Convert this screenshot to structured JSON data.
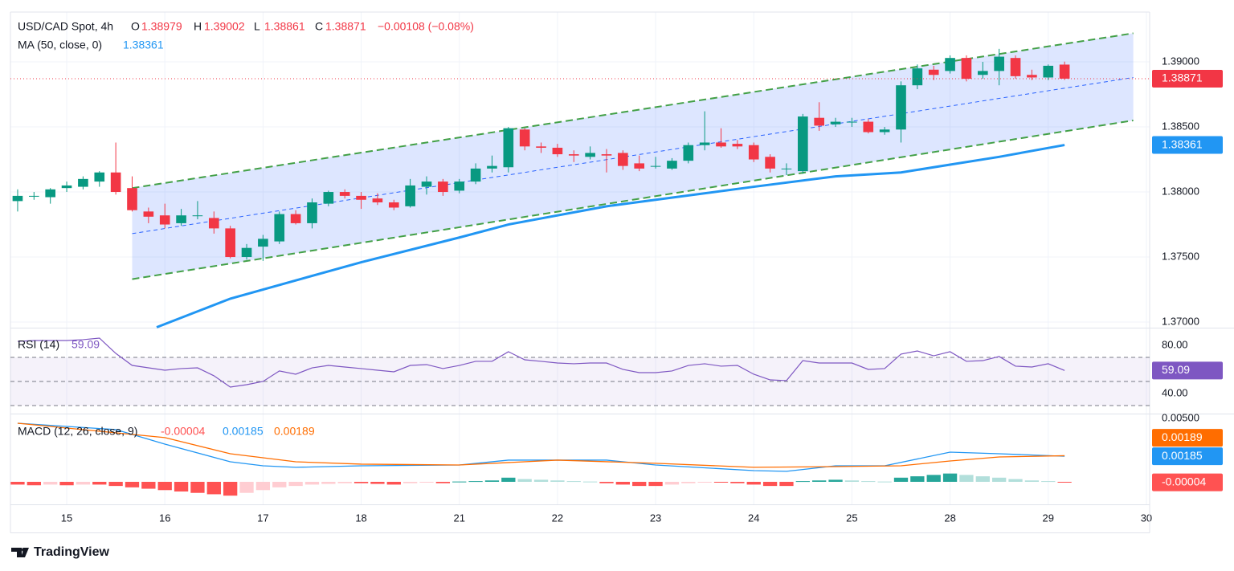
{
  "chart_data": [
    {
      "type": "candlestick",
      "title": "USD/CAD Spot, 4h",
      "ohlc_labels": [
        "O",
        "H",
        "L",
        "C"
      ],
      "change": "−0.00108 (−0.08%)",
      "ohlc": [
        [
          1.3793,
          1.3802,
          1.3785,
          1.3797
        ],
        [
          1.3797,
          1.38,
          1.3794,
          1.3797
        ],
        [
          1.3796,
          1.3803,
          1.3791,
          1.3802
        ],
        [
          1.3803,
          1.3808,
          1.38,
          1.3805
        ],
        [
          1.3804,
          1.3812,
          1.3802,
          1.381
        ],
        [
          1.3808,
          1.3816,
          1.3804,
          1.3815
        ],
        [
          1.3815,
          1.3838,
          1.3798,
          1.38
        ],
        [
          1.3803,
          1.3812,
          1.3785,
          1.3786
        ],
        [
          1.3785,
          1.3788,
          1.3776,
          1.3781
        ],
        [
          1.3782,
          1.3791,
          1.3772,
          1.3775
        ],
        [
          1.3776,
          1.3787,
          1.3774,
          1.3782
        ],
        [
          1.3782,
          1.3793,
          1.3779,
          1.3782
        ],
        [
          1.378,
          1.3785,
          1.3768,
          1.3772
        ],
        [
          1.3772,
          1.3774,
          1.3749,
          1.375
        ],
        [
          1.375,
          1.376,
          1.3748,
          1.3757
        ],
        [
          1.3758,
          1.3767,
          1.3747,
          1.3764
        ],
        [
          1.3762,
          1.3785,
          1.376,
          1.3783
        ],
        [
          1.3783,
          1.3786,
          1.3775,
          1.3776
        ],
        [
          1.3776,
          1.3795,
          1.3772,
          1.3792
        ],
        [
          1.3791,
          1.3801,
          1.3789,
          1.38
        ],
        [
          1.38,
          1.3802,
          1.3795,
          1.3797
        ],
        [
          1.3797,
          1.38,
          1.3787,
          1.3794
        ],
        [
          1.3795,
          1.3799,
          1.379,
          1.3792
        ],
        [
          1.3792,
          1.3794,
          1.3786,
          1.3788
        ],
        [
          1.3789,
          1.381,
          1.3788,
          1.3805
        ],
        [
          1.3804,
          1.3812,
          1.3798,
          1.3808
        ],
        [
          1.3808,
          1.381,
          1.3797,
          1.38
        ],
        [
          1.3801,
          1.381,
          1.3799,
          1.3808
        ],
        [
          1.3808,
          1.3822,
          1.3806,
          1.3818
        ],
        [
          1.3818,
          1.3828,
          1.3815,
          1.382
        ],
        [
          1.3819,
          1.385,
          1.3815,
          1.3849
        ],
        [
          1.3848,
          1.3849,
          1.3832,
          1.3835
        ],
        [
          1.3835,
          1.3838,
          1.383,
          1.3834
        ],
        [
          1.3834,
          1.3837,
          1.3827,
          1.3829
        ],
        [
          1.3829,
          1.3832,
          1.3823,
          1.3828
        ],
        [
          1.3827,
          1.3835,
          1.3825,
          1.383
        ],
        [
          1.3829,
          1.3833,
          1.3815,
          1.3828
        ],
        [
          1.383,
          1.3832,
          1.3817,
          1.382
        ],
        [
          1.3822,
          1.3828,
          1.3816,
          1.3818
        ],
        [
          1.382,
          1.3827,
          1.3818,
          1.382
        ],
        [
          1.3818,
          1.3826,
          1.3817,
          1.3824
        ],
        [
          1.3824,
          1.3838,
          1.3822,
          1.3836
        ],
        [
          1.3836,
          1.3862,
          1.3832,
          1.3838
        ],
        [
          1.3838,
          1.3849,
          1.3834,
          1.3835
        ],
        [
          1.3837,
          1.384,
          1.3833,
          1.3835
        ],
        [
          1.3836,
          1.3838,
          1.3823,
          1.3825
        ],
        [
          1.3827,
          1.3829,
          1.3815,
          1.3818
        ],
        [
          1.3818,
          1.3822,
          1.3813,
          1.3818
        ],
        [
          1.3816,
          1.386,
          1.3814,
          1.3858
        ],
        [
          1.3857,
          1.3869,
          1.3847,
          1.3851
        ],
        [
          1.3852,
          1.3857,
          1.385,
          1.3854
        ],
        [
          1.3854,
          1.3857,
          1.385,
          1.3854
        ],
        [
          1.3854,
          1.3856,
          1.3845,
          1.3846
        ],
        [
          1.3846,
          1.385,
          1.3844,
          1.3848
        ],
        [
          1.3848,
          1.3885,
          1.3838,
          1.3882
        ],
        [
          1.3882,
          1.3898,
          1.3879,
          1.3895
        ],
        [
          1.3894,
          1.3897,
          1.3886,
          1.389
        ],
        [
          1.3893,
          1.3905,
          1.3891,
          1.3903
        ],
        [
          1.3903,
          1.3905,
          1.3885,
          1.3887
        ],
        [
          1.389,
          1.39,
          1.3887,
          1.3893
        ],
        [
          1.3893,
          1.391,
          1.3882,
          1.3904
        ],
        [
          1.3903,
          1.3905,
          1.3887,
          1.3889
        ],
        [
          1.389,
          1.3894,
          1.3886,
          1.3888
        ],
        [
          1.3888,
          1.3898,
          1.3886,
          1.3897
        ],
        [
          1.38979,
          1.39002,
          1.38861,
          1.38871
        ]
      ],
      "colors": {
        "up": "#089981",
        "down": "#f23645"
      },
      "ylim": [
        1.36957,
        1.39383
      ],
      "yticks": [
        {
          "value": 1.37,
          "label": "1.37000"
        },
        {
          "value": 1.375,
          "label": "1.37500"
        },
        {
          "value": 1.38,
          "label": "1.38000"
        },
        {
          "value": 1.385,
          "label": "1.38500"
        },
        {
          "value": 1.39,
          "label": "1.39000"
        }
      ],
      "grid": true,
      "overlays": [
        {
          "name": "MA (50, close, 0)",
          "type": "line",
          "color": "#2196f3",
          "x": [
            8.5,
            13,
            17,
            21,
            27,
            30,
            36,
            39,
            45,
            50,
            54,
            57,
            60,
            64
          ],
          "values": [
            1.3696,
            1.3718,
            1.3732,
            1.3746,
            1.3765,
            1.3775,
            1.3789,
            1.3794,
            1.3804,
            1.3812,
            1.3815,
            1.3821,
            1.3827,
            1.38361
          ]
        }
      ],
      "channel": {
        "color": "#43a047",
        "middle_color": "#2962ff",
        "fill": "#2962ff",
        "x": [
          7,
          68.2
        ],
        "upper": [
          1.3803,
          1.3922
        ],
        "middle": [
          1.3768,
          1.3888
        ],
        "lower": [
          1.3733,
          1.3855
        ]
      }
    },
    {
      "type": "line",
      "series": [
        {
          "name": "RSI (14)",
          "color": "#7e57c2",
          "values": [
            83.3,
            84,
            84,
            84,
            84.7,
            86,
            73.3,
            63.3,
            61.3,
            59.3,
            60.7,
            61.3,
            54.7,
            45.3,
            47.3,
            50,
            58.7,
            56,
            61.3,
            63.3,
            62,
            60.7,
            59.3,
            58,
            63.3,
            64,
            60.7,
            63.3,
            66.7,
            66.7,
            74.7,
            68,
            66.7,
            65.3,
            64.7,
            65.3,
            65.3,
            60,
            57.3,
            57.3,
            58.7,
            63.3,
            64.7,
            62.7,
            63.3,
            56,
            51.3,
            50.7,
            67.3,
            65.3,
            65.3,
            65.3,
            60,
            60.7,
            72.7,
            75.3,
            71.3,
            74.7,
            66.7,
            67.3,
            70.7,
            62.7,
            62,
            64.7,
            59.09
          ]
        }
      ],
      "ylim": [
        23.3,
        94
      ],
      "yticks": [
        {
          "value": 80,
          "label": "80.00"
        },
        {
          "value": 40,
          "label": "40.00"
        }
      ],
      "bands": [
        70,
        50,
        30
      ],
      "band_fill": "#7e57c2"
    },
    {
      "type": "macd",
      "name": "MACD (12, 26, close, 9)",
      "histogram": {
        "values": [
          -0.0002,
          -0.00025,
          -0.0002,
          -0.00025,
          -0.0002,
          -0.0002,
          -0.0003,
          -0.0004,
          -0.0005,
          -0.0006,
          -0.0007,
          -0.0008,
          -0.0009,
          -0.001,
          -0.0008,
          -0.0006,
          -0.0004,
          -0.0003,
          -0.0002,
          -0.00015,
          -0.0001,
          -0.0001,
          -0.00015,
          -0.0002,
          -0.0001,
          -5e-05,
          -0.0001,
          2e-05,
          5e-05,
          0.0001,
          0.0003,
          0.0002,
          0.00015,
          0.0001,
          5e-05,
          2e-05,
          -0.0001,
          -0.0002,
          -0.0003,
          -0.0003,
          -0.0002,
          -0.0001,
          -5e-05,
          -5e-05,
          -0.0001,
          -0.0002,
          -0.0003,
          -0.0003,
          5e-05,
          0.0001,
          0.00015,
          0.0001,
          5e-05,
          2e-05,
          0.0003,
          0.0004,
          0.0005,
          0.0006,
          0.0005,
          0.0004,
          0.0003,
          0.0002,
          0.0001,
          5e-05,
          -4e-05
        ],
        "colors": [
          "#26a69a",
          "#b2dfdb",
          "#ff5252",
          "#ffcdd2"
        ]
      },
      "series": [
        {
          "color": "#2196f3",
          "x": [
            0,
            6,
            9,
            13,
            15,
            17,
            21,
            27,
            30,
            36,
            39,
            45,
            47,
            50,
            53,
            57,
            60,
            64
          ],
          "values": [
            0.00424,
            0.00378,
            0.00273,
            0.00145,
            0.00116,
            0.00105,
            0.00116,
            0.00122,
            0.00157,
            0.00157,
            0.00122,
            0.00081,
            0.00076,
            0.00116,
            0.00116,
            0.00215,
            0.00203,
            0.00185
          ]
        },
        {
          "color": "#ff6d00",
          "x": [
            0,
            9,
            13,
            17,
            21,
            27,
            33,
            39,
            45,
            50,
            54,
            57,
            60,
            64
          ],
          "values": [
            0.00424,
            0.0032,
            0.00203,
            0.00145,
            0.00128,
            0.00122,
            0.00157,
            0.00134,
            0.00105,
            0.0011,
            0.00116,
            0.00151,
            0.0018,
            0.00189
          ]
        }
      ],
      "ylim": [
        -0.00163,
        0.00488
      ],
      "yticks": [
        {
          "value": 0.005,
          "label": "0.00500"
        }
      ],
      "xlim": [
        -0.44,
        69.2
      ],
      "xticks": [
        {
          "value": 3,
          "label": "15"
        },
        {
          "value": 9,
          "label": "16"
        },
        {
          "value": 15,
          "label": "17"
        },
        {
          "value": 21,
          "label": "18"
        },
        {
          "value": 27,
          "label": "21"
        },
        {
          "value": 33,
          "label": "22"
        },
        {
          "value": 39,
          "label": "23"
        },
        {
          "value": 45,
          "label": "24"
        },
        {
          "value": 51,
          "label": "25"
        },
        {
          "value": 57,
          "label": "28"
        },
        {
          "value": 63,
          "label": "29"
        },
        {
          "value": 69,
          "label": "30"
        }
      ]
    }
  ],
  "footer": {
    "brand": "TradingView"
  }
}
